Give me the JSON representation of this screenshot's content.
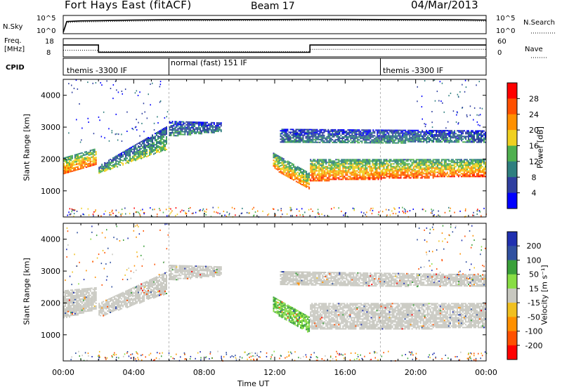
{
  "header": {
    "station": "Fort Hays East (fitACF)",
    "beam": "Beam 17",
    "date": "04/Mar/2013"
  },
  "noise_panel": {
    "left_label": "N.Sky",
    "right_label": "N.Search",
    "left_ticks": [
      "10^5",
      "10^0"
    ],
    "right_ticks": [
      "10^5",
      "10^0"
    ]
  },
  "freq_panel": {
    "left_label_1": "Freq.",
    "left_label_2": "[MHz]",
    "right_label": "Nave",
    "left_ticks": [
      "18",
      "8"
    ],
    "right_ticks": [
      "60",
      "0"
    ]
  },
  "cpid_panel": {
    "label": "CPID",
    "modes": [
      {
        "name": "themis -3300 IF",
        "start_hour": 0
      },
      {
        "name": "normal (fast) 151 IF",
        "start_hour": 6
      },
      {
        "name": "themis -3300 IF",
        "start_hour": 18
      }
    ]
  },
  "x_axis": {
    "label": "Time UT",
    "ticks": [
      "00:00",
      "04:00",
      "08:00",
      "12:00",
      "16:00",
      "20:00",
      "00:00"
    ]
  },
  "power_panel": {
    "ylabel": "Slant Range [km]",
    "colorbar_label": "Power [dB]",
    "colorbar_ticks": [
      "28",
      "24",
      "20",
      "16",
      "12",
      "8",
      "4"
    ],
    "colors": [
      "#0000ff",
      "#2f3fa0",
      "#2f7f7f",
      "#4fb04f",
      "#f0d020",
      "#ff9000",
      "#ff5000",
      "#ff0000"
    ]
  },
  "velocity_panel": {
    "ylabel": "Slant Range [km]",
    "colorbar_label": "Velocity [m s⁻¹]",
    "colorbar_ticks": [
      "200",
      "100",
      "50",
      "15",
      "-15",
      "-50",
      "-100",
      "-200"
    ],
    "colors": [
      "#2030b0",
      "#3050a0",
      "#3aa03a",
      "#88dd44",
      "#c8c8c0",
      "#f0c020",
      "#ff9000",
      "#ff5000",
      "#ff0000"
    ]
  },
  "chart_data": [
    {
      "type": "line",
      "title": "N.Sky / N.Search",
      "xlabel": "",
      "ylabel": "",
      "xlim": [
        0,
        24
      ],
      "scale": "log",
      "series": [
        {
          "name": "N.Sky",
          "x": [
            0,
            0.2,
            1,
            2,
            4,
            6,
            8,
            10,
            12,
            14,
            16,
            18,
            20,
            22,
            24
          ],
          "values": [
            1,
            3000,
            5000,
            6000,
            9000,
            12000,
            12000,
            13000,
            14000,
            15000,
            15000,
            14000,
            13000,
            12000,
            9000
          ]
        }
      ]
    },
    {
      "type": "line",
      "title": "Freq. / Nave",
      "xlim": [
        0,
        24
      ],
      "series": [
        {
          "name": "Freq.",
          "x": [
            0,
            2,
            2,
            14,
            14,
            24
          ],
          "values": [
            14.5,
            14.5,
            10.5,
            10.5,
            14.5,
            14.5
          ]
        },
        {
          "name": "Nave",
          "x": [
            0,
            2,
            2,
            14,
            14,
            24
          ],
          "values": [
            22,
            22,
            17,
            17,
            25,
            25
          ]
        }
      ]
    },
    {
      "type": "heatmap",
      "title": "Power",
      "xlabel": "Time UT",
      "ylabel": "Slant Range [km]",
      "xlim": [
        0,
        24
      ],
      "ylim": [
        180,
        4500
      ],
      "bands": [
        {
          "x0": 0,
          "x1": 1.9,
          "lo0": 1500,
          "lo1": 1800,
          "hi0": 2050,
          "hi1": 2350,
          "v": 24
        },
        {
          "x0": 2.0,
          "x1": 5.9,
          "lo0": 1550,
          "lo1": 2300,
          "hi0": 1800,
          "hi1": 3050,
          "v": 14
        },
        {
          "x0": 6.0,
          "x1": 9.0,
          "lo0": 2700,
          "lo1": 2850,
          "hi0": 3200,
          "hi1": 3150,
          "v": 10
        },
        {
          "x0": 11.9,
          "x1": 14.0,
          "lo0": 1700,
          "lo1": 1000,
          "hi0": 2200,
          "hi1": 1550,
          "v": 22
        },
        {
          "x0": 14.0,
          "x1": 24.0,
          "lo0": 1300,
          "lo1": 1450,
          "hi0": 2000,
          "hi1": 2000,
          "v": 24
        },
        {
          "x0": 12.3,
          "x1": 24.0,
          "lo0": 2500,
          "lo1": 2500,
          "hi0": 2950,
          "hi1": 2900,
          "v": 10
        }
      ]
    },
    {
      "type": "heatmap",
      "title": "Velocity",
      "xlabel": "Time UT",
      "ylabel": "Slant Range [km]",
      "xlim": [
        0,
        24
      ],
      "ylim": [
        180,
        4500
      ],
      "bands": [
        {
          "x0": 0,
          "x1": 1.9,
          "lo0": 1500,
          "lo1": 1800,
          "hi0": 2400,
          "hi1": 2500,
          "v": 0
        },
        {
          "x0": 2.0,
          "x1": 5.9,
          "lo0": 1550,
          "lo1": 2300,
          "hi0": 2000,
          "hi1": 3000,
          "v": 0
        },
        {
          "x0": 6.0,
          "x1": 9.0,
          "lo0": 2700,
          "lo1": 2850,
          "hi0": 3200,
          "hi1": 3150,
          "v": 0
        },
        {
          "x0": 11.9,
          "x1": 14.0,
          "lo0": 1700,
          "lo1": 1000,
          "hi0": 2200,
          "hi1": 1550,
          "v": 30
        },
        {
          "x0": 14.0,
          "x1": 24.0,
          "lo0": 1150,
          "lo1": 1200,
          "hi0": 2000,
          "hi1": 2000,
          "v": 0
        },
        {
          "x0": 12.3,
          "x1": 24.0,
          "lo0": 2550,
          "lo1": 2500,
          "hi0": 3000,
          "hi1": 2900,
          "v": 0
        }
      ]
    }
  ]
}
